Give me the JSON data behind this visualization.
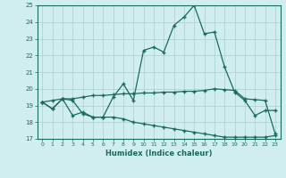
{
  "xlabel": "Humidex (Indice chaleur)",
  "x": [
    0,
    1,
    2,
    3,
    4,
    5,
    6,
    7,
    8,
    9,
    10,
    11,
    12,
    13,
    14,
    15,
    16,
    17,
    18,
    19,
    20,
    21,
    22,
    23
  ],
  "line1": [
    19.2,
    18.8,
    19.4,
    18.4,
    18.6,
    18.3,
    18.3,
    19.5,
    20.3,
    19.3,
    22.3,
    22.5,
    22.2,
    23.8,
    24.3,
    25.0,
    23.3,
    23.4,
    21.3,
    19.8,
    19.3,
    18.4,
    18.7,
    18.7
  ],
  "line2": [
    19.2,
    18.8,
    19.4,
    19.3,
    18.5,
    18.3,
    18.3,
    18.3,
    18.2,
    18.0,
    17.9,
    17.8,
    17.7,
    17.6,
    17.5,
    17.4,
    17.3,
    17.2,
    17.1,
    17.1,
    17.1,
    17.1,
    17.1,
    17.2
  ],
  "line3": [
    19.2,
    19.3,
    19.4,
    19.4,
    19.5,
    19.6,
    19.6,
    19.65,
    19.7,
    19.7,
    19.75,
    19.75,
    19.8,
    19.8,
    19.85,
    19.85,
    19.9,
    20.0,
    19.95,
    19.9,
    19.4,
    19.35,
    19.3,
    17.3
  ],
  "color": "#1a6b5a",
  "bg_color": "#d0eeee",
  "grid_color": "#aacece",
  "ylim": [
    17,
    25
  ],
  "yticks": [
    17,
    18,
    19,
    20,
    21,
    22,
    23,
    24,
    25
  ],
  "xticks": [
    0,
    1,
    2,
    3,
    4,
    5,
    6,
    7,
    8,
    9,
    10,
    11,
    12,
    13,
    14,
    15,
    16,
    17,
    18,
    19,
    20,
    21,
    22,
    23
  ],
  "marker": "+",
  "markersize": 3.5,
  "linewidth": 0.9
}
